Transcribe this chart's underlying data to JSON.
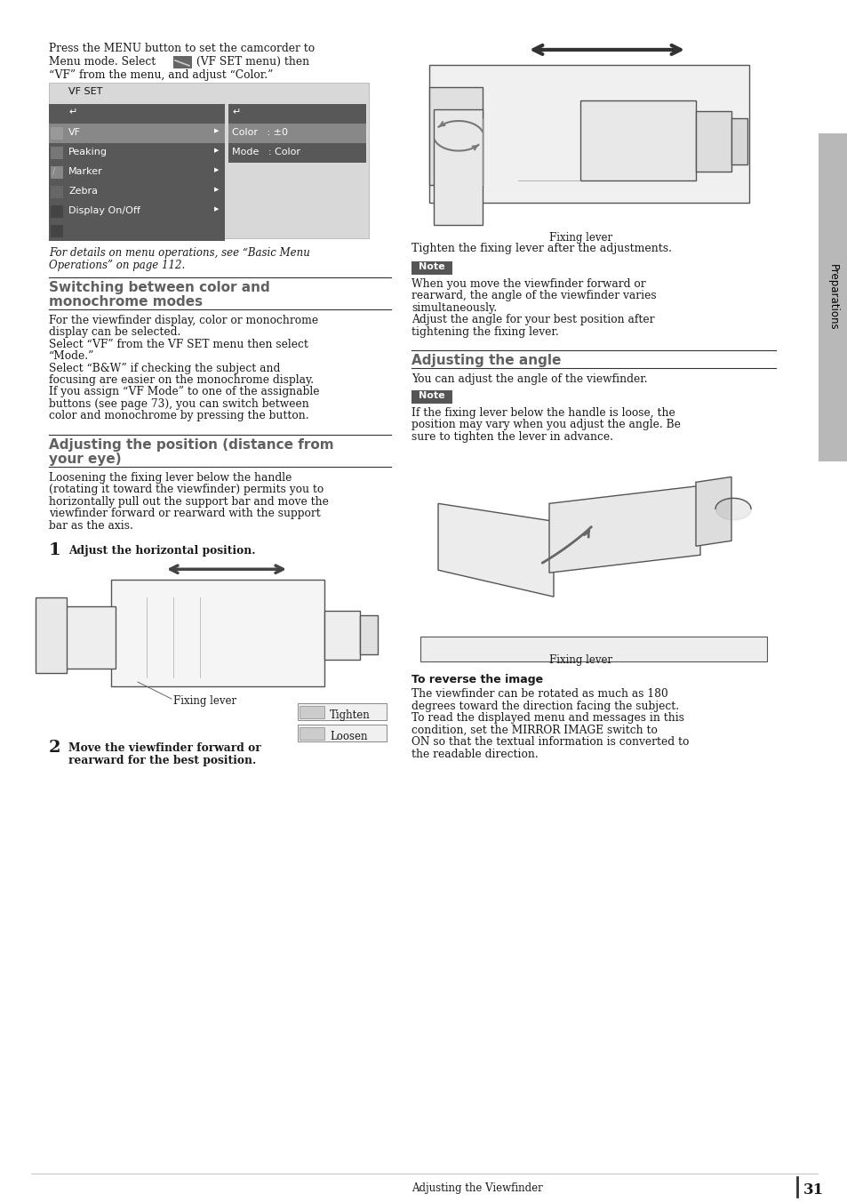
{
  "bg_color": "#ffffff",
  "sidebar_color": "#b8b8b8",
  "sidebar_text": "Preparations",
  "page_number": "31",
  "page_footer_text": "Adjusting the Viewfinder",
  "line1": "Press the MENU button to set the camcorder to",
  "line2a": "Menu mode. Select ",
  "line2b": " (VF SET menu) then",
  "line3": "“VF” from the menu, and adjust “Color.”",
  "italic_caption": "For details on menu operations, see “Basic Menu\nOperations” on page 112.",
  "section1_title": "Switching between color and\nmonochrome modes",
  "section1_body_lines": [
    "For the viewfinder display, color or monochrome",
    "display can be selected.",
    "Select “VF” from the VF SET menu then select",
    "“Mode.”",
    "Select “B&W” if checking the subject and",
    "focusing are easier on the monochrome display.",
    "If you assign “VF Mode” to one of the assignable",
    "buttons (see page 73), you can switch between",
    "color and monochrome by pressing the button."
  ],
  "section2_title": "Adjusting the position (distance from\nyour eye)",
  "section2_body_lines": [
    "Loosening the fixing lever below the handle",
    "(rotating it toward the viewfinder) permits you to",
    "horizontally pull out the support bar and move the",
    "viewfinder forward or rearward with the support",
    "bar as the axis."
  ],
  "step1_num": "1",
  "step1_bold": "Adjust the horizontal position.",
  "step2_num": "2",
  "step2_bold_lines": [
    "Move the viewfinder forward or",
    "rearward for the best position."
  ],
  "right_caption1": "Fixing lever",
  "right_text1": "Tighten the fixing lever after the adjustments.",
  "note_label": "Note",
  "note1_lines": [
    "When you move the viewfinder forward or",
    "rearward, the angle of the viewfinder varies",
    "simultaneously.",
    "Adjust the angle for your best position after",
    "tightening the fixing lever."
  ],
  "section3_title": "Adjusting the angle",
  "section3_body": "You can adjust the angle of the viewfinder.",
  "note_label2": "Note",
  "note2_lines": [
    "If the fixing lever below the handle is loose, the",
    "position may vary when you adjust the angle. Be",
    "sure to tighten the lever in advance."
  ],
  "right_caption3": "Fixing lever",
  "reverse_title": "To reverse the image",
  "reverse_body_lines": [
    "The viewfinder can be rotated as much as 180",
    "degrees toward the direction facing the subject.",
    "To read the displayed menu and messages in this",
    "condition, set the MIRROR IMAGE switch to",
    "ON so that the textual information is converted to",
    "the readable direction."
  ],
  "tighten_label": "Tighten",
  "loosen_label": "Loosen",
  "fixing_lever_label": "Fixing lever",
  "menu_items_left": [
    "VF",
    "Peaking",
    "Marker",
    "Zebra",
    "Display On/Off"
  ],
  "menu_items_right": [
    "Color   : ±0",
    "Mode   : Color"
  ],
  "menu_title": "VF SET",
  "menu_bg": "#d8d8d8",
  "menu_dark": "#585858",
  "menu_selected": "#888888",
  "section_title_color": "#606060",
  "text_color": "#1a1a1a",
  "note_bg": "#555555"
}
